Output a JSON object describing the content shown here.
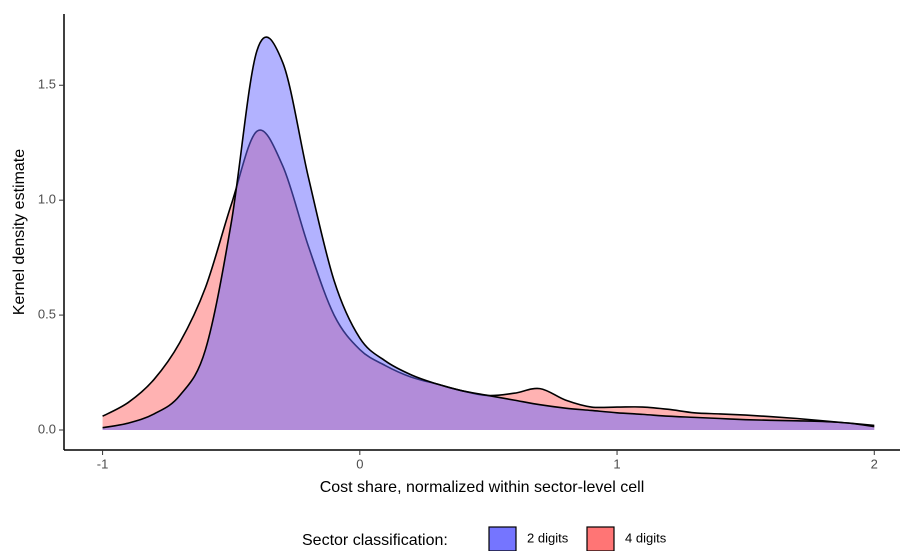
{
  "chart_data": {
    "type": "area",
    "x_label": "Cost share, normalized within sector-level cell",
    "y_label": "Kernel density estimate",
    "x": [
      -1,
      -0.9,
      -0.8,
      -0.7,
      -0.6,
      -0.5,
      -0.4,
      -0.3,
      -0.2,
      -0.1,
      0,
      0.1,
      0.2,
      0.3,
      0.4,
      0.5,
      0.6,
      0.7,
      0.8,
      0.9,
      1,
      1.1,
      1.2,
      1.3,
      1.4,
      1.5,
      1.6,
      1.7,
      1.8,
      1.9,
      2
    ],
    "series": [
      {
        "name": "4 digits",
        "color": "#ff6666",
        "values": [
          0.06,
          0.12,
          0.22,
          0.38,
          0.62,
          0.98,
          1.3,
          1.15,
          0.8,
          0.5,
          0.35,
          0.28,
          0.23,
          0.2,
          0.17,
          0.15,
          0.16,
          0.18,
          0.13,
          0.1,
          0.1,
          0.1,
          0.09,
          0.075,
          0.07,
          0.065,
          0.058,
          0.05,
          0.04,
          0.03,
          0.02
        ]
      },
      {
        "name": "2 digits",
        "color": "#6666ff",
        "values": [
          0.01,
          0.03,
          0.07,
          0.15,
          0.35,
          0.9,
          1.65,
          1.6,
          1.1,
          0.65,
          0.4,
          0.3,
          0.24,
          0.2,
          0.17,
          0.15,
          0.13,
          0.11,
          0.095,
          0.085,
          0.075,
          0.068,
          0.06,
          0.055,
          0.05,
          0.045,
          0.042,
          0.04,
          0.037,
          0.03,
          0.015
        ]
      }
    ],
    "legend_title": "Sector classification:",
    "legend_position": "bottom",
    "xlim": [
      -1.15,
      2.1
    ],
    "ylim": [
      -0.087,
      1.81
    ],
    "xticks": [
      -1,
      0,
      1,
      2
    ],
    "yticks": [
      {
        "value": 0,
        "label": "0.0"
      },
      0.5,
      {
        "value": 1,
        "label": "1.0"
      },
      1.5
    ]
  }
}
